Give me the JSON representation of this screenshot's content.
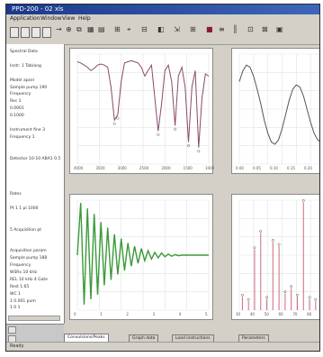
{
  "window": {
    "title": "PPD-200 - 02 xls",
    "menu": [
      "Application",
      "Window",
      "View",
      "Help"
    ]
  },
  "toolbar": {
    "icons": [
      "save-icon",
      "open-icon",
      "print-icon",
      "back-icon",
      "forward-icon",
      "zoom-icon",
      "copy-icon",
      "chart-icon",
      "grid-icon",
      "ruler-icon",
      "cursor-icon",
      "table-icon",
      "color-icon",
      "export-icon",
      "help-icon"
    ]
  },
  "left_panel": {
    "lines": [
      "Spectral Data",
      "",
      "Instr: 1 Tab/ang",
      "",
      "Model apsel",
      "Sample pump 190",
      "Frequency",
      "Rec 1",
      "0.0001",
      "0.1000",
      "",
      "Instrument fine 3",
      "Frequency 1",
      "",
      "",
      "Detector 10-10 ABA1 0.5",
      "",
      "",
      "",
      "",
      "Rates",
      "",
      "Pt 1 1 pl 1000",
      "",
      "",
      "5 Acquisition pt",
      "",
      "",
      "Acquisition param",
      "Sample pump 188",
      "Frequency",
      "WSRx 10 kHz",
      "REL 10 kHz 4 Gate",
      "Rest 1.65",
      "WC 1",
      "1 0.001 pum",
      "1 0 1"
    ]
  },
  "tabs": [
    "Convulsions/Peaks",
    "Graph data",
    "Load instructions",
    "Parameters"
  ],
  "status": "Ready",
  "chart_data": [
    {
      "type": "line",
      "title": "",
      "series": [
        {
          "values": [
            0.93,
            0.92,
            0.9,
            0.88,
            0.85,
            0.87,
            0.9,
            0.91,
            0.9,
            0.88,
            0.7,
            0.4,
            0.45,
            0.75,
            0.92,
            0.93,
            0.94,
            0.93,
            0.92,
            0.88,
            0.8,
            0.85,
            0.9,
            0.6,
            0.3,
            0.55,
            0.85,
            0.9,
            0.75,
            0.35,
            0.8,
            0.88,
            0.7,
            0.2,
            0.7,
            0.85,
            0.15,
            0.6,
            0.82,
            0.8
          ]
        }
      ],
      "xticks": [
        "4000",
        "3500",
        "3000",
        "2500",
        "2000",
        "1500",
        "1000"
      ],
      "ylim": [
        0,
        1
      ],
      "color": "#8a4a6a"
    },
    {
      "type": "line",
      "title": "",
      "series": [
        {
          "values": [
            0.75,
            0.85,
            0.9,
            0.88,
            0.8,
            0.68,
            0.55,
            0.4,
            0.28,
            0.2,
            0.18,
            0.22,
            0.32,
            0.45,
            0.58,
            0.68,
            0.72,
            0.7,
            0.62,
            0.5,
            0.38,
            0.28,
            0.22,
            0.2,
            0.24
          ]
        }
      ],
      "xticks": [
        "0.00",
        "0.05",
        "0.10",
        "0.15",
        "0.20",
        "0.25"
      ],
      "ylim": [
        0,
        1
      ],
      "color": "#555555"
    },
    {
      "type": "line",
      "title": "",
      "series": [
        {
          "values": [
            0.0,
            0.95,
            -0.9,
            0.85,
            -0.8,
            0.75,
            -0.72,
            0.6,
            -0.55,
            0.5,
            -0.45,
            0.38,
            -0.35,
            0.3,
            -0.28,
            0.22,
            -0.2,
            0.16,
            -0.15,
            0.12,
            -0.1,
            0.08,
            -0.07,
            0.05,
            -0.05,
            0.04,
            -0.03,
            0.02,
            -0.02,
            0.01,
            -0.01,
            0.0,
            0.0,
            0.0,
            0.0,
            0.0,
            0.0,
            0.0,
            0.0,
            0.0
          ]
        }
      ],
      "xticks": [
        "0",
        "1",
        "2",
        "3",
        "4",
        "5"
      ],
      "ylim": [
        -1,
        1
      ],
      "color": "#3a9a3a"
    },
    {
      "type": "bar",
      "title": "",
      "categories": [
        "1",
        "2",
        "3",
        "4",
        "5",
        "6",
        "7",
        "8",
        "9",
        "10",
        "11",
        "12",
        "13",
        "14"
      ],
      "values": [
        0.12,
        0.08,
        0.55,
        0.7,
        0.1,
        0.62,
        0.58,
        0.15,
        0.2,
        0.12,
        0.98,
        0.1,
        0.08,
        0.15
      ],
      "xticks": [
        "30",
        "40",
        "50",
        "60",
        "70",
        "80",
        "90"
      ],
      "ylim": [
        0,
        1
      ],
      "color": "#cc6a7a"
    }
  ]
}
